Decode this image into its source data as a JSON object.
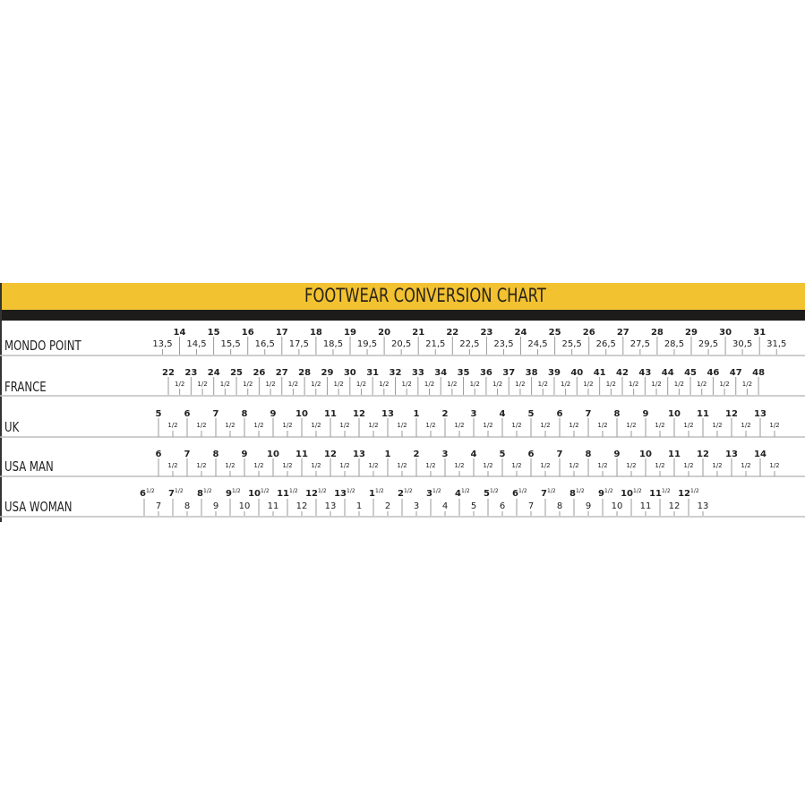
{
  "chart_data": {
    "type": "table",
    "title": "FOOTWEAR CONVERSION CHART",
    "colors": {
      "band": "#f2c230",
      "bar": "#1e1c1a",
      "text": "#222222",
      "rule": "#bdbdbd"
    },
    "rows": [
      {
        "name": "MONDO POINT",
        "major": [
          "14",
          "15",
          "16",
          "17",
          "18",
          "19",
          "20",
          "21",
          "22",
          "23",
          "24",
          "25",
          "26",
          "27",
          "28",
          "29",
          "30",
          "31"
        ],
        "half": [
          "13,5",
          "14,5",
          "15,5",
          "16,5",
          "17,5",
          "18,5",
          "19,5",
          "20,5",
          "21,5",
          "22,5",
          "23,5",
          "24,5",
          "25,5",
          "26,5",
          "27,5",
          "28,5",
          "29,5",
          "30,5",
          "31,5"
        ]
      },
      {
        "name": "FRANCE",
        "major": [
          "22",
          "23",
          "24",
          "25",
          "26",
          "27",
          "28",
          "29",
          "30",
          "31",
          "32",
          "33",
          "34",
          "35",
          "36",
          "37",
          "38",
          "39",
          "40",
          "41",
          "42",
          "43",
          "44",
          "45",
          "46",
          "47",
          "48"
        ],
        "half_label": "1/2"
      },
      {
        "name": "UK",
        "major": [
          "5",
          "6",
          "7",
          "8",
          "9",
          "10",
          "11",
          "12",
          "13",
          "1",
          "2",
          "3",
          "4",
          "5",
          "6",
          "7",
          "8",
          "9",
          "10",
          "11",
          "12",
          "13"
        ],
        "half_label": "1/2"
      },
      {
        "name": "USA MAN",
        "major": [
          "6",
          "7",
          "8",
          "9",
          "10",
          "11",
          "12",
          "13",
          "1",
          "2",
          "3",
          "4",
          "5",
          "6",
          "7",
          "8",
          "9",
          "10",
          "11",
          "12",
          "13",
          "14"
        ],
        "half_label": "1/2"
      },
      {
        "name": "USA WOMAN",
        "top": [
          "6",
          "7",
          "8",
          "9",
          "10",
          "11",
          "12",
          "13",
          "1",
          "2",
          "3",
          "4",
          "5",
          "6",
          "7",
          "8",
          "9",
          "10",
          "11",
          "12"
        ],
        "top_suffix": "1/2",
        "bottom": [
          "7",
          "8",
          "9",
          "10",
          "11",
          "12",
          "13",
          "1",
          "2",
          "3",
          "4",
          "5",
          "6",
          "7",
          "8",
          "9",
          "10",
          "11",
          "12",
          "13"
        ]
      }
    ]
  }
}
